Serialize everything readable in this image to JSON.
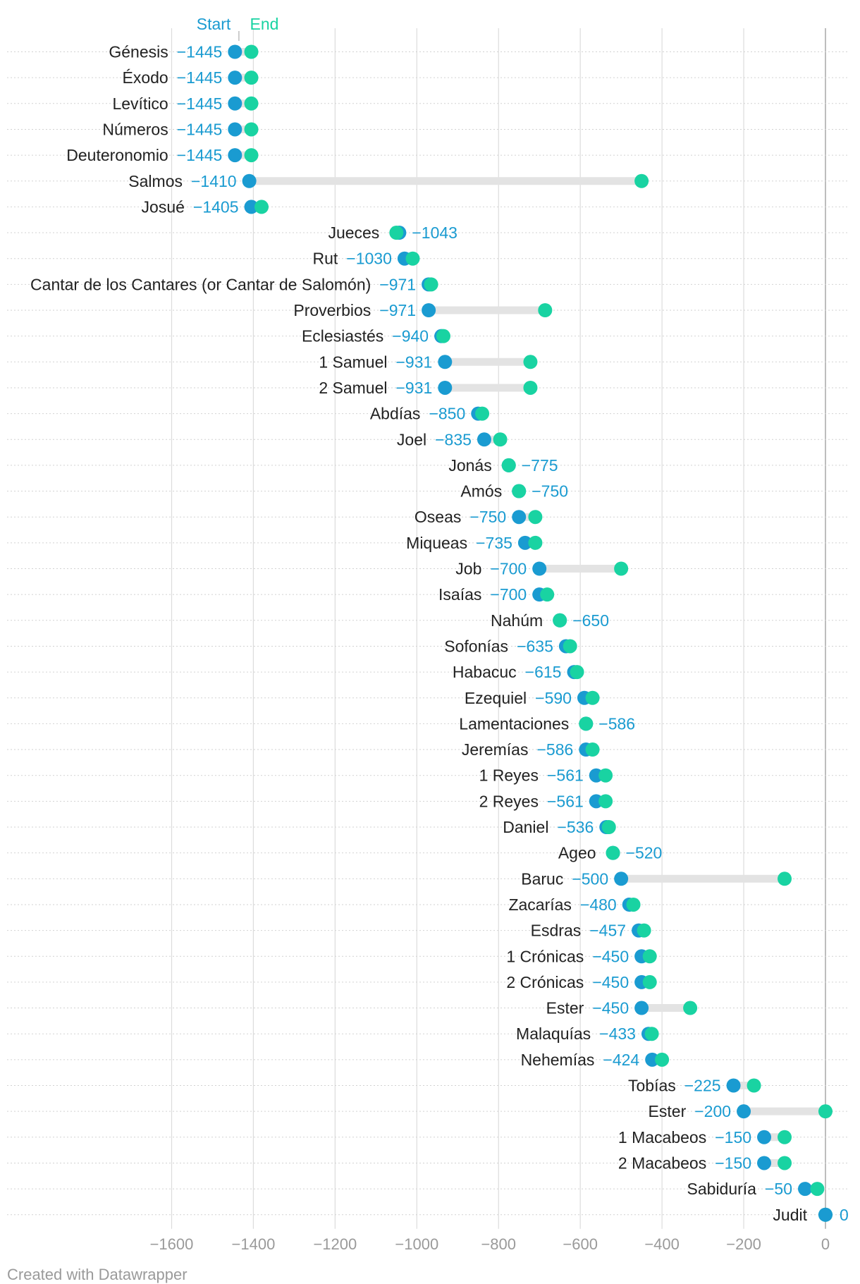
{
  "chart_data": {
    "type": "dumbbell",
    "legend": {
      "start_label": "Start",
      "end_label": "End",
      "placement": "top"
    },
    "x_ticks": [
      -1600,
      -1400,
      -1200,
      -1000,
      -800,
      -600,
      -400,
      -200,
      0
    ],
    "x_tick_labels": [
      "−1600",
      "−1400",
      "−1200",
      "−1000",
      "−800",
      "−600",
      "−400",
      "−200",
      "0"
    ],
    "xlim": [
      -1700,
      10
    ],
    "colors": {
      "start": "#1a9bd1",
      "end": "#19d3a2",
      "range": "#e3e3e3",
      "grid": "#dcdcdc",
      "label": "#1a9bd1",
      "text": "#222222"
    },
    "rows": [
      {
        "label": "Génesis",
        "start": -1445,
        "end": -1405,
        "value_label": "−1445"
      },
      {
        "label": "Éxodo",
        "start": -1445,
        "end": -1405,
        "value_label": "−1445"
      },
      {
        "label": "Levítico",
        "start": -1445,
        "end": -1405,
        "value_label": "−1445"
      },
      {
        "label": "Números",
        "start": -1445,
        "end": -1405,
        "value_label": "−1445"
      },
      {
        "label": "Deuteronomio",
        "start": -1445,
        "end": -1405,
        "value_label": "−1445"
      },
      {
        "label": "Salmos",
        "start": -1410,
        "end": -450,
        "value_label": "−1410"
      },
      {
        "label": "Josué",
        "start": -1405,
        "end": -1380,
        "value_label": "−1405"
      },
      {
        "label": "Jueces",
        "start": -1043,
        "end": -1050,
        "value_label": "−1043"
      },
      {
        "label": "Rut",
        "start": -1030,
        "end": -1010,
        "value_label": "−1030"
      },
      {
        "label": "Cantar de los Cantares (or Cantar de Salomón)",
        "start": -971,
        "end": -965,
        "value_label": "−971"
      },
      {
        "label": "Proverbios",
        "start": -971,
        "end": -686,
        "value_label": "−971"
      },
      {
        "label": "Eclesiastés",
        "start": -940,
        "end": -935,
        "value_label": "−940"
      },
      {
        "label": "1 Samuel",
        "start": -931,
        "end": -722,
        "value_label": "−931"
      },
      {
        "label": "2 Samuel",
        "start": -931,
        "end": -722,
        "value_label": "−931"
      },
      {
        "label": "Abdías",
        "start": -850,
        "end": -840,
        "value_label": "−850"
      },
      {
        "label": "Joel",
        "start": -835,
        "end": -796,
        "value_label": "−835"
      },
      {
        "label": "Jonás",
        "start": -775,
        "end": -775,
        "value_label": "−775"
      },
      {
        "label": "Amós",
        "start": -750,
        "end": -750,
        "value_label": "−750"
      },
      {
        "label": "Oseas",
        "start": -750,
        "end": -710,
        "value_label": "−750"
      },
      {
        "label": "Miqueas",
        "start": -735,
        "end": -710,
        "value_label": "−735"
      },
      {
        "label": "Job",
        "start": -700,
        "end": -500,
        "value_label": "−700"
      },
      {
        "label": "Isaías",
        "start": -700,
        "end": -681,
        "value_label": "−700"
      },
      {
        "label": "Nahúm",
        "start": -650,
        "end": -650,
        "value_label": "−650"
      },
      {
        "label": "Sofonías",
        "start": -635,
        "end": -625,
        "value_label": "−635"
      },
      {
        "label": "Habacuc",
        "start": -615,
        "end": -608,
        "value_label": "−615"
      },
      {
        "label": "Ezequiel",
        "start": -590,
        "end": -570,
        "value_label": "−590"
      },
      {
        "label": "Lamentaciones",
        "start": -586,
        "end": -586,
        "value_label": "−586"
      },
      {
        "label": "Jeremías",
        "start": -586,
        "end": -570,
        "value_label": "−586"
      },
      {
        "label": "1 Reyes",
        "start": -561,
        "end": -538,
        "value_label": "−561"
      },
      {
        "label": "2 Reyes",
        "start": -561,
        "end": -538,
        "value_label": "−561"
      },
      {
        "label": "Daniel",
        "start": -536,
        "end": -530,
        "value_label": "−536"
      },
      {
        "label": "Ageo",
        "start": -520,
        "end": -520,
        "value_label": "−520"
      },
      {
        "label": "Baruc",
        "start": -500,
        "end": -100,
        "value_label": "−500"
      },
      {
        "label": "Zacarías",
        "start": -480,
        "end": -470,
        "value_label": "−480"
      },
      {
        "label": "Esdras",
        "start": -457,
        "end": -444,
        "value_label": "−457"
      },
      {
        "label": "1 Crónicas",
        "start": -450,
        "end": -430,
        "value_label": "−450"
      },
      {
        "label": "2 Crónicas",
        "start": -450,
        "end": -430,
        "value_label": "−450"
      },
      {
        "label": "Ester",
        "start": -450,
        "end": -331,
        "value_label": "−450"
      },
      {
        "label": "Malaquías",
        "start": -433,
        "end": -425,
        "value_label": "−433"
      },
      {
        "label": "Nehemías",
        "start": -424,
        "end": -400,
        "value_label": "−424"
      },
      {
        "label": "Tobías",
        "start": -225,
        "end": -175,
        "value_label": "−225"
      },
      {
        "label": "Ester",
        "start": -200,
        "end": 0,
        "value_label": "−200"
      },
      {
        "label": "1 Macabeos",
        "start": -150,
        "end": -100,
        "value_label": "−150"
      },
      {
        "label": "2 Macabeos",
        "start": -150,
        "end": -100,
        "value_label": "−150"
      },
      {
        "label": "Sabiduría",
        "start": -50,
        "end": -20,
        "value_label": "−50"
      },
      {
        "label": "Judit",
        "start": 0,
        "end": 0,
        "value_label": "0"
      }
    ]
  },
  "footer": {
    "credit": "Created with Datawrapper"
  }
}
